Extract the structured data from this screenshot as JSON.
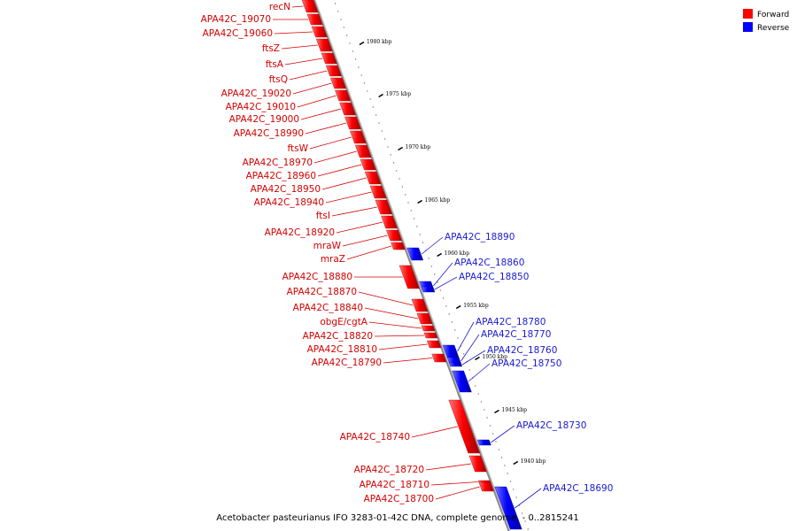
{
  "caption": "Acetobacter pasteurianus IFO 3283-01-42C DNA, complete genome. - 0..2815241",
  "legend": [
    {
      "label": "Forward",
      "color": "#ff0000"
    },
    {
      "label": "Reverse",
      "color": "#0000ff"
    }
  ],
  "ticks": [
    "1980 kbp",
    "1975 kbp",
    "1970 kbp",
    "1965 kbp",
    "1960 kbp",
    "1955 kbp",
    "1950 kbp",
    "1945 kbp",
    "1940 kbp"
  ],
  "genes_forward": [
    "recN",
    "APA42C_19070",
    "APA42C_19060",
    "ftsZ",
    "ftsA",
    "ftsQ",
    "APA42C_19020",
    "APA42C_19010",
    "APA42C_19000",
    "APA42C_18990",
    "ftsW",
    "APA42C_18970",
    "APA42C_18960",
    "APA42C_18950",
    "APA42C_18940",
    "ftsI",
    "APA42C_18920",
    "mraW",
    "mraZ",
    "APA42C_18880",
    "APA42C_18870",
    "APA42C_18840",
    "obgE/cgtA",
    "APA42C_18820",
    "APA42C_18810",
    "APA42C_18790",
    "APA42C_18740",
    "APA42C_18720",
    "APA42C_18710",
    "APA42C_18700"
  ],
  "genes_reverse": [
    "APA42C_18890",
    "APA42C_18860",
    "APA42C_18850",
    "APA42C_18780",
    "APA42C_18770",
    "APA42C_18760",
    "APA42C_18750",
    "APA42C_18730",
    "APA42C_18690"
  ]
}
